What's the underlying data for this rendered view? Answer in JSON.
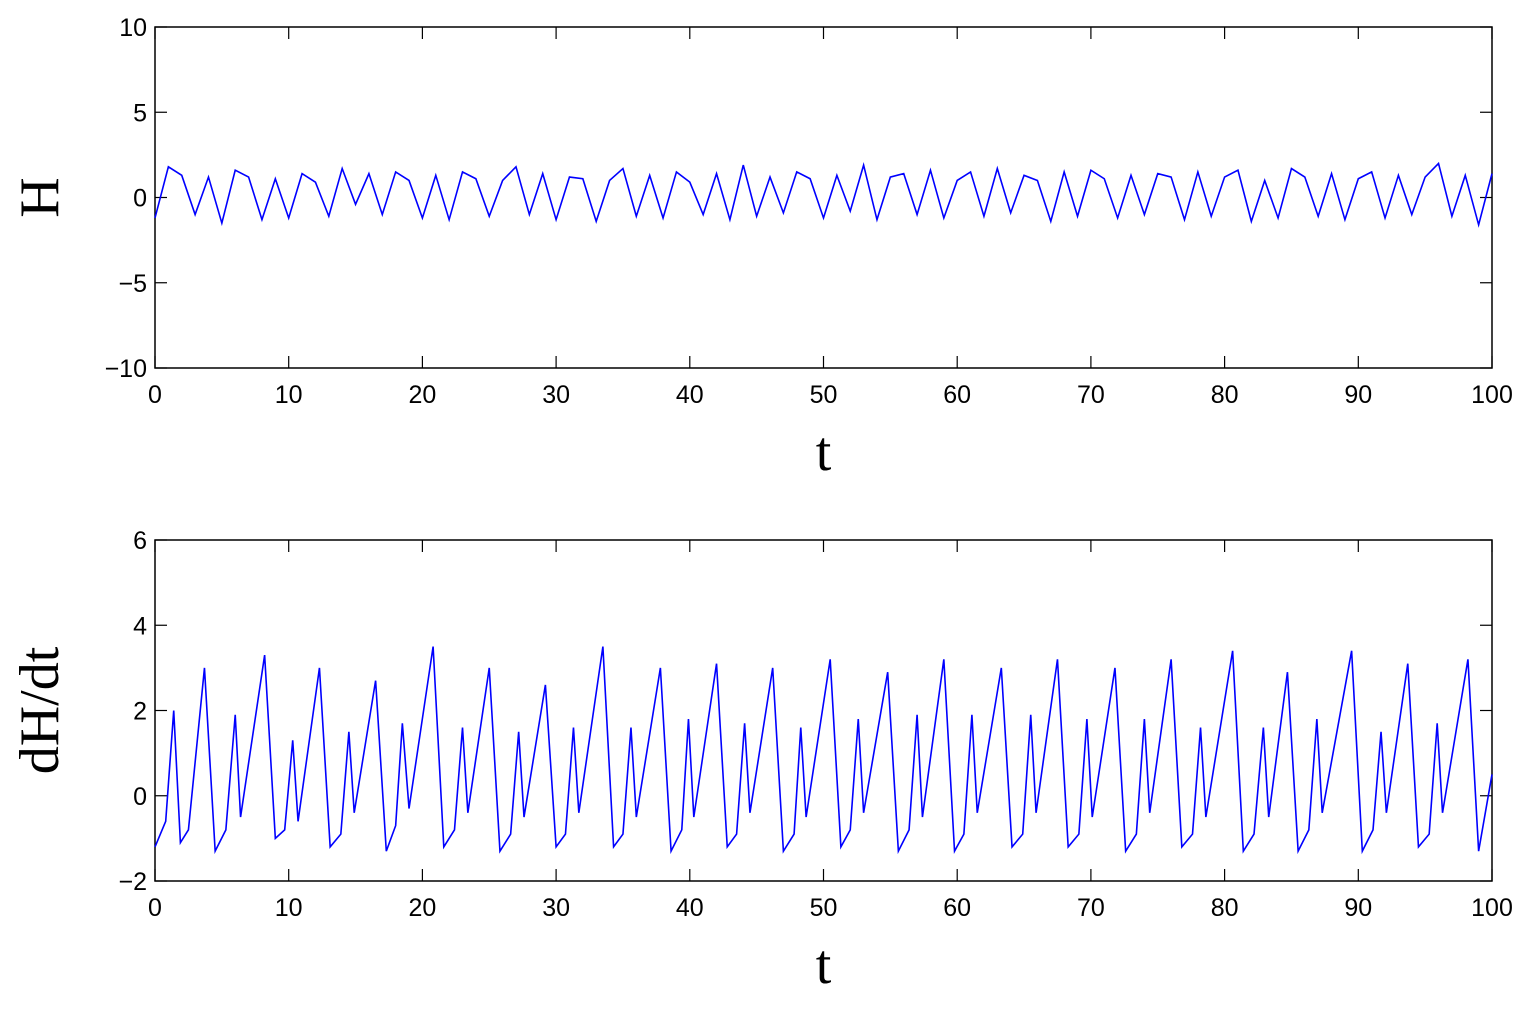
{
  "chart_data": [
    {
      "type": "line",
      "x_label": "t",
      "y_label": "H",
      "color": "#0000ff",
      "xlim": [
        0,
        100
      ],
      "xticks": [
        0,
        10,
        20,
        30,
        40,
        50,
        60,
        70,
        80,
        90,
        100
      ],
      "ylim": [
        -10,
        10
      ],
      "yticks": [
        {
          "value": -10,
          "label": "−10"
        },
        {
          "value": -5,
          "label": "−5"
        },
        0,
        5,
        10
      ],
      "x": [
        0,
        1,
        2,
        3,
        4,
        5,
        6,
        7,
        8,
        9,
        10,
        11,
        12,
        13,
        14,
        15,
        16,
        17,
        18,
        19,
        20,
        21,
        22,
        23,
        24,
        25,
        26,
        27,
        28,
        29,
        30,
        31,
        32,
        33,
        34,
        35,
        36,
        37,
        38,
        39,
        40,
        41,
        42,
        43,
        44,
        45,
        46,
        47,
        48,
        49,
        50,
        51,
        52,
        53,
        54,
        55,
        56,
        57,
        58,
        59,
        60,
        61,
        62,
        63,
        64,
        65,
        66,
        67,
        68,
        69,
        70,
        71,
        72,
        73,
        74,
        75,
        76,
        77,
        78,
        79,
        80,
        81,
        82,
        83,
        84,
        85,
        86,
        87,
        88,
        89,
        90,
        91,
        92,
        93,
        94,
        95,
        96,
        97,
        98,
        99,
        100
      ],
      "values": [
        -1.2,
        1.8,
        1.3,
        -1.0,
        1.2,
        -1.5,
        1.6,
        1.2,
        -1.3,
        1.1,
        -1.2,
        1.4,
        0.9,
        -1.1,
        1.7,
        -0.4,
        1.4,
        -1.0,
        1.5,
        1.0,
        -1.2,
        1.3,
        -1.3,
        1.5,
        1.1,
        -1.1,
        1.0,
        1.8,
        -1.0,
        1.4,
        -1.3,
        1.2,
        1.1,
        -1.4,
        1.0,
        1.7,
        -1.1,
        1.3,
        -1.2,
        1.5,
        0.9,
        -1.0,
        1.4,
        -1.3,
        1.9,
        -1.1,
        1.2,
        -0.9,
        1.5,
        1.1,
        -1.2,
        1.3,
        -0.8,
        1.9,
        -1.3,
        1.2,
        1.4,
        -1.0,
        1.6,
        -1.2,
        1.0,
        1.5,
        -1.1,
        1.7,
        -0.9,
        1.3,
        1.0,
        -1.4,
        1.5,
        -1.1,
        1.6,
        1.1,
        -1.2,
        1.3,
        -1.0,
        1.4,
        1.2,
        -1.3,
        1.5,
        -1.1,
        1.2,
        1.6,
        -1.4,
        1.0,
        -1.2,
        1.7,
        1.2,
        -1.1,
        1.4,
        -1.3,
        1.1,
        1.5,
        -1.2,
        1.3,
        -1.0,
        1.2,
        2.0,
        -1.1,
        1.3,
        -1.6,
        1.4
      ]
    },
    {
      "type": "line",
      "x_label": "t",
      "y_label": "dH/dt",
      "color": "#0000ff",
      "xlim": [
        0,
        100
      ],
      "xticks": [
        0,
        10,
        20,
        30,
        40,
        50,
        60,
        70,
        80,
        90,
        100
      ],
      "ylim": [
        -2,
        6
      ],
      "yticks": [
        {
          "value": -2,
          "label": "−2"
        },
        0,
        2,
        4,
        6
      ],
      "x": [
        0,
        0.8,
        1.4,
        1.9,
        2.5,
        3.7,
        4.5,
        5.3,
        6.0,
        6.4,
        8.2,
        9.0,
        9.7,
        10.3,
        10.7,
        12.3,
        13.1,
        13.9,
        14.5,
        14.9,
        16.5,
        17.3,
        18.0,
        18.5,
        19.0,
        20.8,
        21.6,
        22.4,
        23.0,
        23.4,
        25.0,
        25.8,
        26.6,
        27.2,
        27.6,
        29.2,
        30.0,
        30.7,
        31.3,
        31.7,
        33.5,
        34.3,
        35.0,
        35.6,
        36.0,
        37.8,
        38.6,
        39.4,
        39.9,
        40.3,
        42.0,
        42.8,
        43.5,
        44.1,
        44.5,
        46.2,
        47.0,
        47.8,
        48.3,
        48.7,
        50.5,
        51.3,
        52.0,
        52.6,
        53.0,
        54.8,
        55.6,
        56.4,
        57.0,
        57.4,
        59.0,
        59.8,
        60.5,
        61.1,
        61.5,
        63.3,
        64.1,
        64.9,
        65.5,
        65.9,
        67.5,
        68.3,
        69.1,
        69.7,
        70.1,
        71.8,
        72.6,
        73.4,
        74.0,
        74.4,
        76.0,
        76.8,
        77.6,
        78.2,
        78.6,
        80.6,
        81.4,
        82.2,
        82.9,
        83.3,
        84.7,
        85.5,
        86.3,
        86.9,
        87.3,
        89.5,
        90.3,
        91.1,
        91.7,
        92.1,
        93.7,
        94.5,
        95.3,
        95.9,
        96.3,
        98.2,
        99.0,
        100
      ],
      "values": [
        -1.2,
        -0.6,
        2.0,
        -1.1,
        -0.8,
        3.0,
        -1.3,
        -0.8,
        1.9,
        -0.5,
        3.3,
        -1.0,
        -0.8,
        1.3,
        -0.6,
        3.0,
        -1.2,
        -0.9,
        1.5,
        -0.4,
        2.7,
        -1.3,
        -0.7,
        1.7,
        -0.3,
        3.5,
        -1.2,
        -0.8,
        1.6,
        -0.4,
        3.0,
        -1.3,
        -0.9,
        1.5,
        -0.5,
        2.6,
        -1.2,
        -0.9,
        1.6,
        -0.4,
        3.5,
        -1.2,
        -0.9,
        1.6,
        -0.5,
        3.0,
        -1.3,
        -0.8,
        1.8,
        -0.5,
        3.1,
        -1.2,
        -0.9,
        1.7,
        -0.4,
        3.0,
        -1.3,
        -0.9,
        1.6,
        -0.5,
        3.2,
        -1.2,
        -0.8,
        1.8,
        -0.4,
        2.9,
        -1.3,
        -0.8,
        1.9,
        -0.5,
        3.2,
        -1.3,
        -0.9,
        1.9,
        -0.4,
        3.0,
        -1.2,
        -0.9,
        1.9,
        -0.4,
        3.2,
        -1.2,
        -0.9,
        1.8,
        -0.5,
        3.0,
        -1.3,
        -0.9,
        1.8,
        -0.4,
        3.2,
        -1.2,
        -0.9,
        1.6,
        -0.5,
        3.4,
        -1.3,
        -0.9,
        1.6,
        -0.5,
        2.9,
        -1.3,
        -0.8,
        1.8,
        -0.4,
        3.4,
        -1.3,
        -0.8,
        1.5,
        -0.4,
        3.1,
        -1.2,
        -0.9,
        1.7,
        -0.4,
        3.2,
        -1.3,
        0.5
      ]
    }
  ]
}
